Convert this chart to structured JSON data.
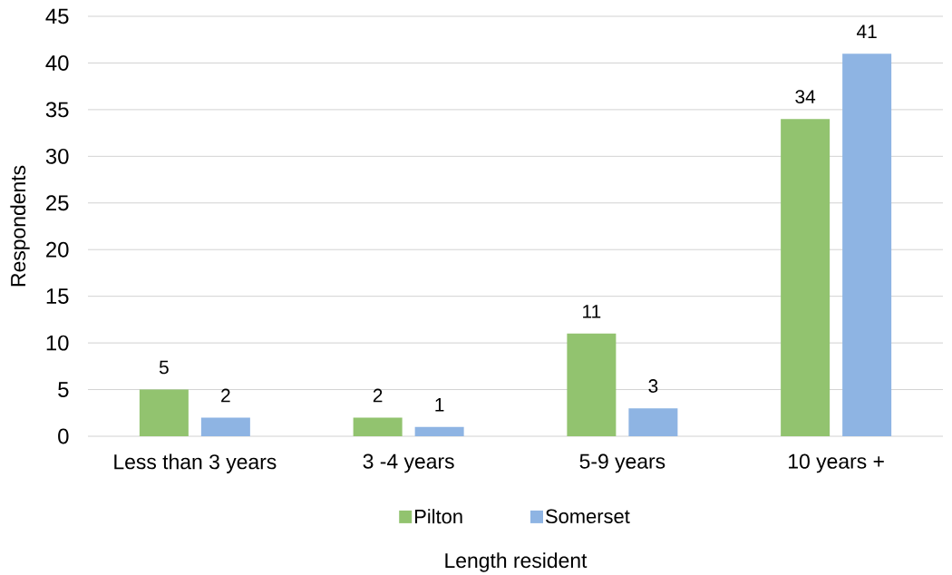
{
  "chart_data": {
    "type": "bar",
    "categories": [
      "Less than 3 years",
      "3 -4 years",
      "5-9 years",
      "10 years +"
    ],
    "series": [
      {
        "name": "Pilton",
        "color": "#92c36f",
        "values": [
          5,
          2,
          11,
          34
        ]
      },
      {
        "name": "Somerset",
        "color": "#8eb4e3",
        "values": [
          2,
          1,
          3,
          41
        ]
      }
    ],
    "xlabel": "Length resident",
    "ylabel": "Respondents",
    "ylim": [
      0,
      45
    ],
    "yticks": [
      0,
      5,
      10,
      15,
      20,
      25,
      30,
      35,
      40,
      45
    ],
    "grid": "y",
    "legend": "bottom",
    "data_labels": true
  }
}
